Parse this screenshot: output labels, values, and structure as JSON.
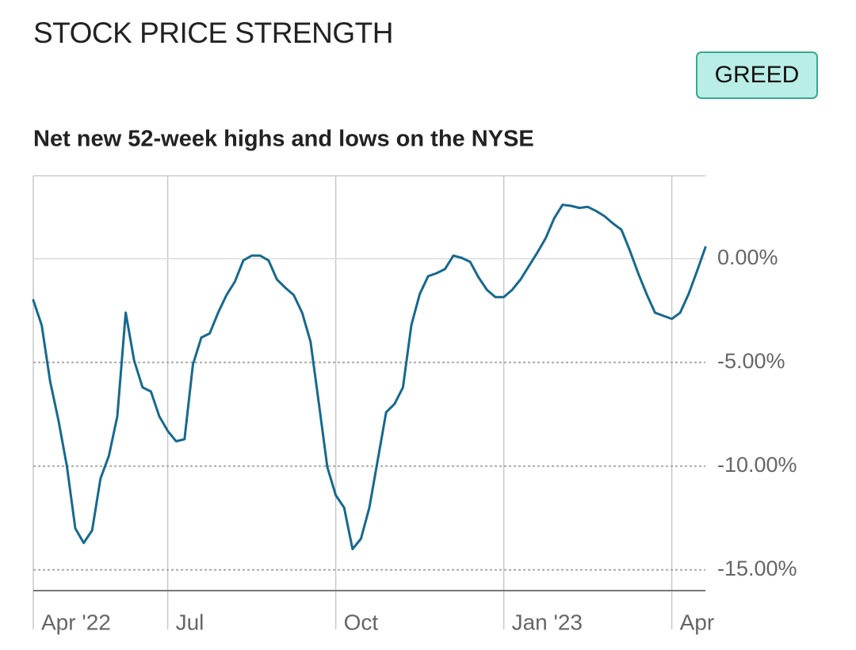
{
  "header": {
    "title": "STOCK PRICE STRENGTH",
    "badge": "GREED"
  },
  "chart_data": {
    "type": "line",
    "title": "Net new 52-week highs and lows on the NYSE",
    "categories": [
      "Apr '22",
      null,
      null,
      null,
      null,
      null,
      null,
      null,
      null,
      null,
      null,
      null,
      null,
      null,
      null,
      null,
      "Jul",
      null,
      null,
      null,
      null,
      null,
      null,
      null,
      null,
      null,
      null,
      null,
      null,
      null,
      null,
      null,
      null,
      null,
      null,
      null,
      "Oct",
      null,
      null,
      null,
      null,
      null,
      null,
      null,
      null,
      null,
      null,
      null,
      null,
      null,
      null,
      null,
      null,
      null,
      null,
      null,
      "Jan '23",
      null,
      null,
      null,
      null,
      null,
      null,
      null,
      null,
      null,
      null,
      null,
      null,
      null,
      null,
      null,
      null,
      null,
      null,
      null,
      "Apr",
      null,
      null,
      null,
      null
    ],
    "values": [
      -2.0,
      -3.2,
      -5.9,
      -7.8,
      -10.0,
      -13.0,
      -13.7,
      -13.1,
      -10.6,
      -9.5,
      -7.6,
      -2.6,
      -4.9,
      -6.2,
      -6.4,
      -7.6,
      -8.3,
      -8.8,
      -8.7,
      -5.1,
      -3.8,
      -3.6,
      -2.6,
      -1.75,
      -1.1,
      -0.08,
      0.15,
      0.15,
      -0.08,
      -1.0,
      -1.4,
      -1.75,
      -2.6,
      -4.0,
      -7.0,
      -10.05,
      -11.4,
      -12.0,
      -14.0,
      -13.5,
      -12.0,
      -9.7,
      -7.4,
      -7.0,
      -6.2,
      -3.2,
      -1.7,
      -0.84,
      -0.7,
      -0.5,
      0.15,
      0.04,
      -0.15,
      -0.9,
      -1.5,
      -1.85,
      -1.85,
      -1.5,
      -1.0,
      -0.35,
      0.3,
      1.0,
      1.95,
      2.6,
      2.55,
      2.45,
      2.5,
      2.3,
      2.05,
      1.7,
      1.4,
      0.4,
      -0.7,
      -1.7,
      -2.6,
      -2.75,
      -2.9,
      -2.6,
      -1.7,
      -0.6,
      0.55
    ],
    "color": "#17698e",
    "ylim": [
      -16,
      4
    ],
    "yticks": [
      {
        "value": 0,
        "label": "0.00%"
      },
      {
        "value": -5,
        "label": "-5.00%"
      },
      {
        "value": -10,
        "label": "-10.00%"
      },
      {
        "value": -15,
        "label": "-15.00%"
      }
    ],
    "grid": true
  }
}
